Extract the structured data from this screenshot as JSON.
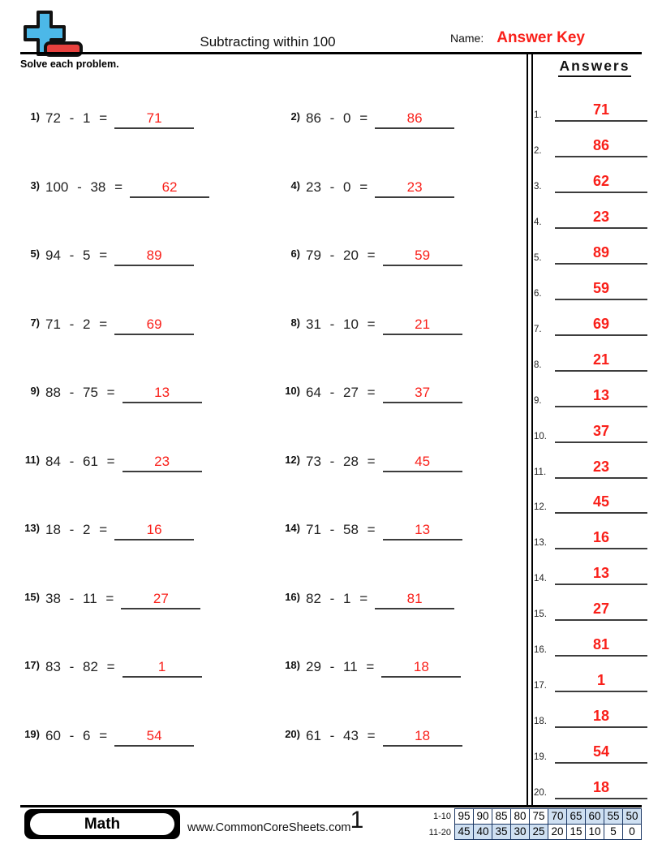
{
  "page": {
    "title": "Subtracting within 100",
    "name_label": "Name:",
    "name_value": "Answer Key",
    "instructions": "Solve each problem.",
    "answers_heading": "Answers",
    "page_number": "1"
  },
  "colors": {
    "answer_red": "#f9201a",
    "logo_blue": "#4cb8e8",
    "logo_red": "#e8413e",
    "table_highlight": "#cfe0f2",
    "table_border": "#1b3764"
  },
  "problems": [
    {
      "n": "1)",
      "expr": "72 - 1 =",
      "ans": "71"
    },
    {
      "n": "2)",
      "expr": "86 - 0 =",
      "ans": "86"
    },
    {
      "n": "3)",
      "expr": "100 - 38 =",
      "ans": "62"
    },
    {
      "n": "4)",
      "expr": "23 - 0 =",
      "ans": "23"
    },
    {
      "n": "5)",
      "expr": "94 - 5 =",
      "ans": "89"
    },
    {
      "n": "6)",
      "expr": "79 - 20 =",
      "ans": "59"
    },
    {
      "n": "7)",
      "expr": "71 - 2 =",
      "ans": "69"
    },
    {
      "n": "8)",
      "expr": "31 - 10 =",
      "ans": "21"
    },
    {
      "n": "9)",
      "expr": "88 - 75 =",
      "ans": "13"
    },
    {
      "n": "10)",
      "expr": "64 - 27 =",
      "ans": "37"
    },
    {
      "n": "11)",
      "expr": "84 - 61 =",
      "ans": "23"
    },
    {
      "n": "12)",
      "expr": "73 - 28 =",
      "ans": "45"
    },
    {
      "n": "13)",
      "expr": "18 - 2 =",
      "ans": "16"
    },
    {
      "n": "14)",
      "expr": "71 - 58 =",
      "ans": "13"
    },
    {
      "n": "15)",
      "expr": "38 - 11 =",
      "ans": "27"
    },
    {
      "n": "16)",
      "expr": "82 - 1 =",
      "ans": "81"
    },
    {
      "n": "17)",
      "expr": "83 - 82 =",
      "ans": "1"
    },
    {
      "n": "18)",
      "expr": "29 - 11 =",
      "ans": "18"
    },
    {
      "n": "19)",
      "expr": "60 - 6 =",
      "ans": "54"
    },
    {
      "n": "20)",
      "expr": "61 - 43 =",
      "ans": "18"
    }
  ],
  "answer_list": [
    {
      "n": "1.",
      "v": "71"
    },
    {
      "n": "2.",
      "v": "86"
    },
    {
      "n": "3.",
      "v": "62"
    },
    {
      "n": "4.",
      "v": "23"
    },
    {
      "n": "5.",
      "v": "89"
    },
    {
      "n": "6.",
      "v": "59"
    },
    {
      "n": "7.",
      "v": "69"
    },
    {
      "n": "8.",
      "v": "21"
    },
    {
      "n": "9.",
      "v": "13"
    },
    {
      "n": "10.",
      "v": "37"
    },
    {
      "n": "11.",
      "v": "23"
    },
    {
      "n": "12.",
      "v": "45"
    },
    {
      "n": "13.",
      "v": "16"
    },
    {
      "n": "14.",
      "v": "13"
    },
    {
      "n": "15.",
      "v": "27"
    },
    {
      "n": "16.",
      "v": "81"
    },
    {
      "n": "17.",
      "v": "1"
    },
    {
      "n": "18.",
      "v": "18"
    },
    {
      "n": "19.",
      "v": "54"
    },
    {
      "n": "20.",
      "v": "18"
    }
  ],
  "footer": {
    "subject": "Math",
    "website": "www.CommonCoreSheets.com",
    "score_table": [
      {
        "label": "1-10",
        "cells": [
          {
            "v": "95",
            "hl": false
          },
          {
            "v": "90",
            "hl": false
          },
          {
            "v": "85",
            "hl": false
          },
          {
            "v": "80",
            "hl": false
          },
          {
            "v": "75",
            "hl": false
          },
          {
            "v": "70",
            "hl": true
          },
          {
            "v": "65",
            "hl": true
          },
          {
            "v": "60",
            "hl": true
          },
          {
            "v": "55",
            "hl": true
          },
          {
            "v": "50",
            "hl": true
          }
        ]
      },
      {
        "label": "11-20",
        "cells": [
          {
            "v": "45",
            "hl": true
          },
          {
            "v": "40",
            "hl": true
          },
          {
            "v": "35",
            "hl": true
          },
          {
            "v": "30",
            "hl": true
          },
          {
            "v": "25",
            "hl": true
          },
          {
            "v": "20",
            "hl": false
          },
          {
            "v": "15",
            "hl": false
          },
          {
            "v": "10",
            "hl": false
          },
          {
            "v": "5",
            "hl": false
          },
          {
            "v": "0",
            "hl": false
          }
        ]
      }
    ]
  }
}
